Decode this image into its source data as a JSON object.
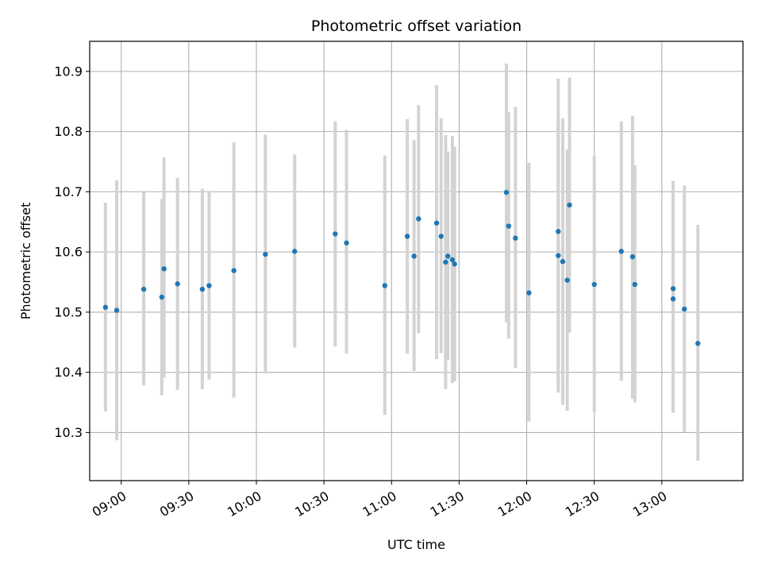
{
  "chart_data": {
    "type": "scatter",
    "title": "Photometric offset variation",
    "xlabel": "UTC time",
    "ylabel": "Photometric offset",
    "grid": true,
    "legend": "none",
    "xlim": [
      "08:46",
      "13:36"
    ],
    "ylim": [
      10.22,
      10.95
    ],
    "x_ticks": [
      "09:00",
      "09:30",
      "10:00",
      "10:30",
      "11:00",
      "11:30",
      "12:00",
      "12:30",
      "13:00"
    ],
    "y_ticks": [
      10.3,
      10.4,
      10.5,
      10.6,
      10.7,
      10.8,
      10.9
    ],
    "colors": {
      "point": "#1f77b4",
      "errorbar": "#d3d3d3",
      "grid": "#b0b0b0"
    },
    "series": [
      {
        "x": [
          "08:53",
          "08:58",
          "09:10",
          "09:18",
          "09:19",
          "09:25",
          "09:36",
          "09:39",
          "09:50",
          "10:04",
          "10:17",
          "10:35",
          "10:40",
          "10:57",
          "11:07",
          "11:10",
          "11:12",
          "11:20",
          "11:22",
          "11:24",
          "11:25",
          "11:27",
          "11:28",
          "11:51",
          "11:52",
          "11:55",
          "12:01",
          "12:14",
          "12:14",
          "12:16",
          "12:18",
          "12:19",
          "12:30",
          "12:42",
          "12:47",
          "12:48",
          "13:05",
          "13:05",
          "13:10",
          "13:16"
        ],
        "y": [
          10.508,
          10.503,
          10.538,
          10.525,
          10.572,
          10.547,
          10.538,
          10.544,
          10.569,
          10.596,
          10.601,
          10.63,
          10.615,
          10.544,
          10.626,
          10.593,
          10.655,
          10.648,
          10.626,
          10.583,
          10.593,
          10.587,
          10.58,
          10.699,
          10.643,
          10.623,
          10.532,
          10.634,
          10.594,
          10.584,
          10.553,
          10.678,
          10.546,
          10.601,
          10.592,
          10.546,
          10.539,
          10.522,
          10.505,
          10.448
        ],
        "yerr_low": [
          10.335,
          10.287,
          10.378,
          10.362,
          10.391,
          10.371,
          10.372,
          10.388,
          10.358,
          10.398,
          10.441,
          10.443,
          10.431,
          10.329,
          10.431,
          10.402,
          10.465,
          10.422,
          10.432,
          10.372,
          10.42,
          10.382,
          10.385,
          10.483,
          10.456,
          10.407,
          10.318,
          10.382,
          10.366,
          10.346,
          10.336,
          10.466,
          10.333,
          10.386,
          10.356,
          10.35,
          10.333,
          10.333,
          10.301,
          10.253
        ],
        "yerr_high": [
          10.682,
          10.719,
          10.7,
          10.688,
          10.757,
          10.723,
          10.705,
          10.701,
          10.782,
          10.795,
          10.762,
          10.817,
          10.803,
          10.76,
          10.821,
          10.786,
          10.844,
          10.877,
          10.822,
          10.794,
          10.767,
          10.793,
          10.775,
          10.913,
          10.832,
          10.841,
          10.748,
          10.888,
          10.823,
          10.822,
          10.77,
          10.89,
          10.759,
          10.817,
          10.826,
          10.744,
          10.718,
          10.713,
          10.71,
          10.645
        ]
      }
    ]
  }
}
